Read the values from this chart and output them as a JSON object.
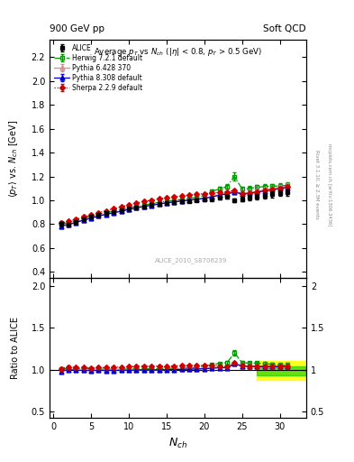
{
  "title_top_left": "900 GeV pp",
  "title_top_right": "Soft QCD",
  "plot_title": "Average $p_T$ vs $N_{ch}$ ($|\\eta|$ < 0.8, $p_T$ > 0.5 GeV)",
  "ylabel_main": "$\\langle p_T \\rangle$ vs. $N_{ch}$ [GeV]",
  "ylabel_ratio": "Ratio to ALICE",
  "xlabel": "$N_{ch}$",
  "right_label1": "Rivet 3.1.10, ≥ 2.3M events",
  "right_label2": "mcplots.cern.ch [arXiv:1306.3436]",
  "ref_label": "ALICE_2010_S8706239",
  "ylim_main": [
    0.35,
    2.35
  ],
  "ylim_ratio": [
    0.42,
    2.1
  ],
  "xlim": [
    -0.5,
    33.5
  ],
  "alice_x": [
    1,
    2,
    3,
    4,
    5,
    6,
    7,
    8,
    9,
    10,
    11,
    12,
    13,
    14,
    15,
    16,
    17,
    18,
    19,
    20,
    21,
    22,
    23,
    24,
    25,
    26,
    27,
    28,
    29,
    30,
    31
  ],
  "alice_y": [
    0.8,
    0.795,
    0.82,
    0.84,
    0.86,
    0.875,
    0.89,
    0.905,
    0.915,
    0.93,
    0.94,
    0.95,
    0.96,
    0.97,
    0.978,
    0.985,
    0.99,
    0.995,
    1.0,
    1.005,
    1.01,
    1.02,
    1.03,
    1.0,
    1.01,
    1.02,
    1.03,
    1.04,
    1.05,
    1.06,
    1.065
  ],
  "alice_yerr": [
    0.02,
    0.015,
    0.015,
    0.015,
    0.012,
    0.012,
    0.01,
    0.01,
    0.01,
    0.01,
    0.01,
    0.01,
    0.01,
    0.01,
    0.01,
    0.01,
    0.01,
    0.01,
    0.01,
    0.01,
    0.012,
    0.012,
    0.015,
    0.018,
    0.02,
    0.022,
    0.025,
    0.025,
    0.025,
    0.025,
    0.03
  ],
  "herwig_x": [
    1,
    2,
    3,
    4,
    5,
    6,
    7,
    8,
    9,
    10,
    11,
    12,
    13,
    14,
    15,
    16,
    17,
    18,
    19,
    20,
    21,
    22,
    23,
    24,
    25,
    26,
    27,
    28,
    29,
    30,
    31
  ],
  "herwig_y": [
    0.805,
    0.81,
    0.83,
    0.85,
    0.868,
    0.882,
    0.895,
    0.91,
    0.92,
    0.938,
    0.948,
    0.96,
    0.97,
    0.982,
    0.992,
    1.0,
    1.008,
    1.015,
    1.025,
    1.04,
    1.075,
    1.095,
    1.115,
    1.2,
    1.095,
    1.1,
    1.11,
    1.115,
    1.118,
    1.12,
    1.125
  ],
  "herwig_yerr": [
    0.02,
    0.015,
    0.012,
    0.01,
    0.01,
    0.008,
    0.008,
    0.008,
    0.008,
    0.008,
    0.008,
    0.008,
    0.008,
    0.008,
    0.008,
    0.008,
    0.008,
    0.008,
    0.008,
    0.01,
    0.012,
    0.015,
    0.018,
    0.035,
    0.02,
    0.02,
    0.02,
    0.02,
    0.02,
    0.022,
    0.025
  ],
  "pythia6_x": [
    1,
    2,
    3,
    4,
    5,
    6,
    7,
    8,
    9,
    10,
    11,
    12,
    13,
    14,
    15,
    16,
    17,
    18,
    19,
    20,
    21,
    22,
    23,
    24,
    25,
    26,
    27,
    28,
    29,
    30,
    31
  ],
  "pythia6_y": [
    0.79,
    0.8,
    0.818,
    0.836,
    0.854,
    0.87,
    0.884,
    0.898,
    0.91,
    0.926,
    0.938,
    0.95,
    0.96,
    0.97,
    0.98,
    0.988,
    0.996,
    1.003,
    1.01,
    1.018,
    1.03,
    1.048,
    1.058,
    1.073,
    1.055,
    1.065,
    1.075,
    1.088,
    1.098,
    1.108,
    1.118
  ],
  "pythia6_yerr": [
    0.018,
    0.012,
    0.01,
    0.01,
    0.008,
    0.008,
    0.008,
    0.008,
    0.008,
    0.008,
    0.008,
    0.008,
    0.008,
    0.008,
    0.008,
    0.008,
    0.008,
    0.008,
    0.008,
    0.008,
    0.008,
    0.01,
    0.01,
    0.012,
    0.012,
    0.014,
    0.015,
    0.018,
    0.018,
    0.02,
    0.022
  ],
  "pythia8_x": [
    1,
    2,
    3,
    4,
    5,
    6,
    7,
    8,
    9,
    10,
    11,
    12,
    13,
    14,
    15,
    16,
    17,
    18,
    19,
    20,
    21,
    22,
    23,
    24,
    25,
    26,
    27,
    28,
    29,
    30,
    31
  ],
  "pythia8_y": [
    0.783,
    0.796,
    0.814,
    0.833,
    0.851,
    0.868,
    0.882,
    0.896,
    0.908,
    0.924,
    0.936,
    0.948,
    0.958,
    0.968,
    0.978,
    0.986,
    0.994,
    1.001,
    1.008,
    1.016,
    1.028,
    1.043,
    1.053,
    1.068,
    1.053,
    1.058,
    1.068,
    1.078,
    1.088,
    1.098,
    1.108
  ],
  "pythia8_yerr": [
    0.016,
    0.01,
    0.008,
    0.008,
    0.008,
    0.006,
    0.006,
    0.006,
    0.006,
    0.006,
    0.006,
    0.006,
    0.006,
    0.006,
    0.006,
    0.006,
    0.006,
    0.006,
    0.006,
    0.006,
    0.006,
    0.008,
    0.008,
    0.01,
    0.01,
    0.01,
    0.01,
    0.012,
    0.012,
    0.012,
    0.015
  ],
  "sherpa_x": [
    1,
    2,
    3,
    4,
    5,
    6,
    7,
    8,
    9,
    10,
    11,
    12,
    13,
    14,
    15,
    16,
    17,
    18,
    19,
    20,
    21,
    22,
    23,
    24,
    25,
    26,
    27,
    28,
    29,
    30,
    31
  ],
  "sherpa_y": [
    0.81,
    0.822,
    0.842,
    0.86,
    0.878,
    0.897,
    0.912,
    0.932,
    0.943,
    0.963,
    0.977,
    0.991,
    1.001,
    1.011,
    1.021,
    1.029,
    1.036,
    1.043,
    1.051,
    1.056,
    1.061,
    1.066,
    1.071,
    1.081,
    1.056,
    1.061,
    1.071,
    1.081,
    1.091,
    1.101,
    1.111
  ],
  "sherpa_yerr": [
    0.016,
    0.01,
    0.008,
    0.008,
    0.008,
    0.006,
    0.006,
    0.006,
    0.006,
    0.006,
    0.006,
    0.006,
    0.006,
    0.006,
    0.006,
    0.006,
    0.006,
    0.006,
    0.006,
    0.006,
    0.006,
    0.008,
    0.008,
    0.01,
    0.01,
    0.01,
    0.01,
    0.012,
    0.012,
    0.012,
    0.015
  ],
  "alice_color": "#000000",
  "herwig_color": "#009900",
  "pythia6_color": "#dd8888",
  "pythia8_color": "#0000cc",
  "sherpa_color": "#cc0000",
  "ratio_band_x_start": 27,
  "ratio_band_yellow_lo": 0.88,
  "ratio_band_yellow_hi": 1.1,
  "ratio_band_green_lo": 0.93,
  "ratio_band_green_hi": 1.04
}
